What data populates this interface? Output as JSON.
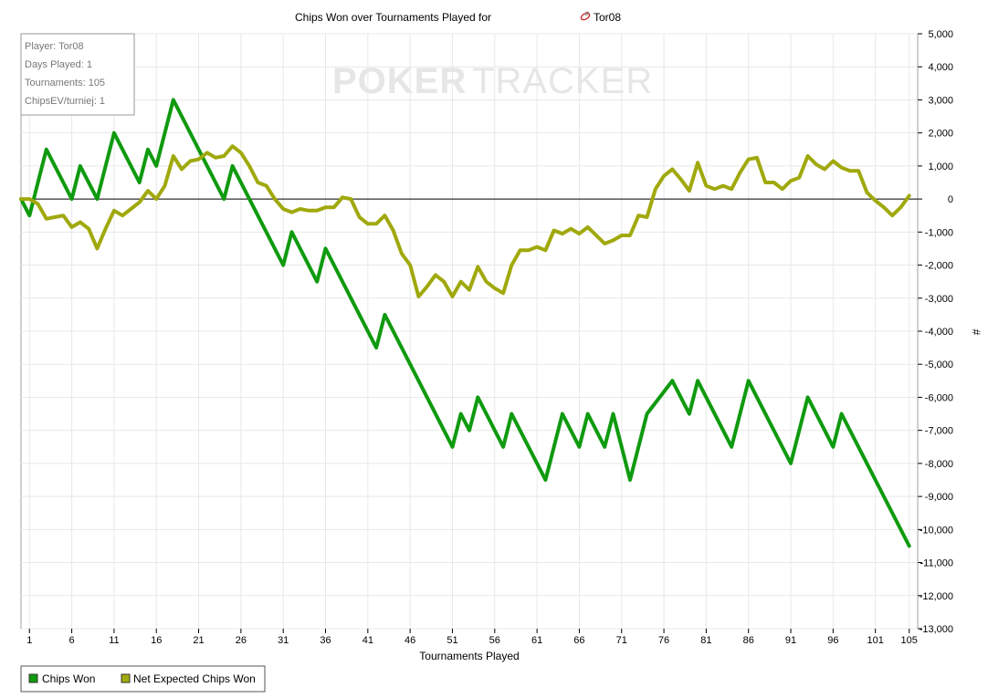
{
  "chart_data": {
    "type": "line",
    "title": "Chips Won over Tournaments Played for",
    "player_name": "Tor08",
    "title_icon": "poker-chip-icon",
    "watermark": {
      "left": "POKER",
      "right": "TRACKER"
    },
    "xlabel": "Tournaments Played",
    "ylabel": "#",
    "xlim": [
      0,
      106
    ],
    "ylim": [
      -13000,
      5000
    ],
    "x_ticks": [
      1,
      6,
      11,
      16,
      21,
      26,
      31,
      36,
      41,
      46,
      51,
      56,
      61,
      66,
      71,
      76,
      81,
      86,
      91,
      96,
      101,
      105
    ],
    "y_ticks": [
      5000,
      4000,
      3000,
      2000,
      1000,
      0,
      -1000,
      -2000,
      -3000,
      -4000,
      -5000,
      -6000,
      -7000,
      -8000,
      -9000,
      -10000,
      -11000,
      -12000,
      -13000
    ],
    "y_tick_labels": [
      "5,000",
      "4,000",
      "3,000",
      "2,000",
      "1,000",
      "0",
      "-1,000",
      "-2,000",
      "-3,000",
      "-4,000",
      "-5,000",
      "-6,000",
      "-7,000",
      "-8,000",
      "-9,000",
      "-10,000",
      "-11,000",
      "-12,000",
      "-13,000"
    ],
    "grid": true,
    "y_axis_position": "right",
    "legend_position": "bottom-left",
    "info_box": [
      "Player: Tor08",
      "Days Played: 1",
      "Tournaments: 105",
      "ChipsEV/turniej: 1"
    ],
    "series": [
      {
        "name": "Chips Won",
        "color": "#0f9a0f",
        "x": [
          0,
          1,
          3,
          6,
          7,
          9,
          11,
          14,
          15,
          16,
          18,
          24,
          25,
          31,
          32,
          35,
          36,
          42,
          43,
          51,
          52,
          53,
          54,
          57,
          58,
          62,
          64,
          66,
          67,
          69,
          70,
          72,
          74,
          77,
          79,
          80,
          84,
          86,
          91,
          93,
          96,
          97,
          105
        ],
        "values": [
          0,
          -500,
          1500,
          0,
          1000,
          0,
          2000,
          500,
          1500,
          1000,
          3000,
          0,
          1000,
          -2000,
          -1000,
          -2500,
          -1500,
          -4500,
          -3500,
          -7500,
          -6500,
          -7000,
          -6000,
          -7500,
          -6500,
          -8500,
          -6500,
          -7500,
          -6500,
          -7500,
          -6500,
          -8500,
          -6500,
          -5500,
          -6500,
          -5500,
          -7500,
          -5500,
          -8000,
          -6000,
          -7500,
          -6500,
          -10500
        ]
      },
      {
        "name": "Net Expected Chips Won",
        "color": "#a0a90c",
        "x": [
          0,
          1,
          2,
          3,
          4,
          5,
          6,
          7,
          8,
          9,
          10,
          11,
          12,
          13,
          14,
          15,
          16,
          17,
          18,
          19,
          20,
          21,
          22,
          23,
          24,
          25,
          26,
          27,
          28,
          29,
          30,
          31,
          32,
          33,
          34,
          35,
          36,
          37,
          38,
          39,
          40,
          41,
          42,
          43,
          44,
          45,
          46,
          47,
          48,
          49,
          50,
          51,
          52,
          53,
          54,
          55,
          56,
          57,
          58,
          59,
          60,
          61,
          62,
          63,
          64,
          65,
          66,
          67,
          68,
          69,
          70,
          71,
          72,
          73,
          74,
          75,
          76,
          77,
          78,
          79,
          80,
          81,
          82,
          83,
          84,
          85,
          86,
          87,
          88,
          89,
          90,
          91,
          92,
          93,
          94,
          95,
          96,
          97,
          98,
          99,
          100,
          101,
          102,
          103,
          104,
          105
        ],
        "values": [
          0,
          0,
          -150,
          -600,
          -550,
          -500,
          -850,
          -700,
          -900,
          -1500,
          -900,
          -350,
          -500,
          -300,
          -100,
          250,
          0,
          400,
          1300,
          900,
          1150,
          1200,
          1400,
          1250,
          1300,
          1600,
          1400,
          1000,
          500,
          400,
          0,
          -300,
          -400,
          -300,
          -350,
          -350,
          -250,
          -250,
          50,
          0,
          -550,
          -750,
          -750,
          -500,
          -950,
          -1650,
          -2000,
          -2950,
          -2650,
          -2300,
          -2500,
          -2950,
          -2500,
          -2750,
          -2050,
          -2500,
          -2700,
          -2850,
          -2000,
          -1550,
          -1550,
          -1450,
          -1550,
          -950,
          -1050,
          -900,
          -1050,
          -850,
          -1100,
          -1350,
          -1250,
          -1100,
          -1100,
          -500,
          -550,
          300,
          700,
          900,
          600,
          250,
          1100,
          400,
          300,
          400,
          300,
          800,
          1200,
          1250,
          500,
          500,
          300,
          550,
          650,
          1300,
          1050,
          900,
          1150,
          950,
          850,
          850,
          200,
          -50,
          -250,
          -500,
          -250,
          100
        ]
      }
    ]
  }
}
